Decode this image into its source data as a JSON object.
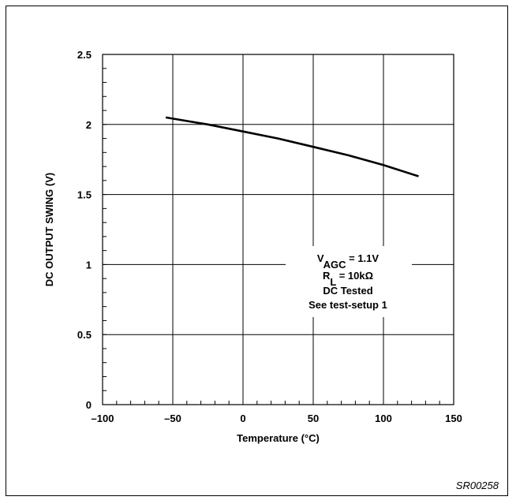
{
  "chart_data": {
    "type": "line",
    "title": "",
    "xlabel": "Temperature (°C)",
    "ylabel": "DC OUTPUT SWING (V)",
    "xlim": [
      -100,
      150
    ],
    "ylim": [
      0,
      2.5
    ],
    "x_ticks": [
      -100,
      -50,
      0,
      50,
      100,
      150
    ],
    "x_tick_labels": [
      "–100",
      "–50",
      "0",
      "50",
      "100",
      "150"
    ],
    "y_ticks": [
      0,
      0.5,
      1,
      1.5,
      2,
      2.5
    ],
    "y_tick_labels": [
      "0",
      "0.5",
      "1",
      "1.5",
      "2",
      "2.5"
    ],
    "grid": true,
    "series": [
      {
        "x": [
          -55,
          -25,
          0,
          25,
          50,
          75,
          100,
          125
        ],
        "y": [
          2.05,
          2.0,
          1.95,
          1.9,
          1.84,
          1.78,
          1.71,
          1.63
        ]
      }
    ],
    "annotation": {
      "vagc_main": "V",
      "vagc_sub": "AGC",
      "vagc_value": " = 1.1V",
      "rl_main": "R",
      "rl_sub": "L",
      "rl_value": " = 10kΩ",
      "line3": "DC Tested",
      "line4": "See test-setup 1"
    }
  },
  "figure_code": "SR00258"
}
